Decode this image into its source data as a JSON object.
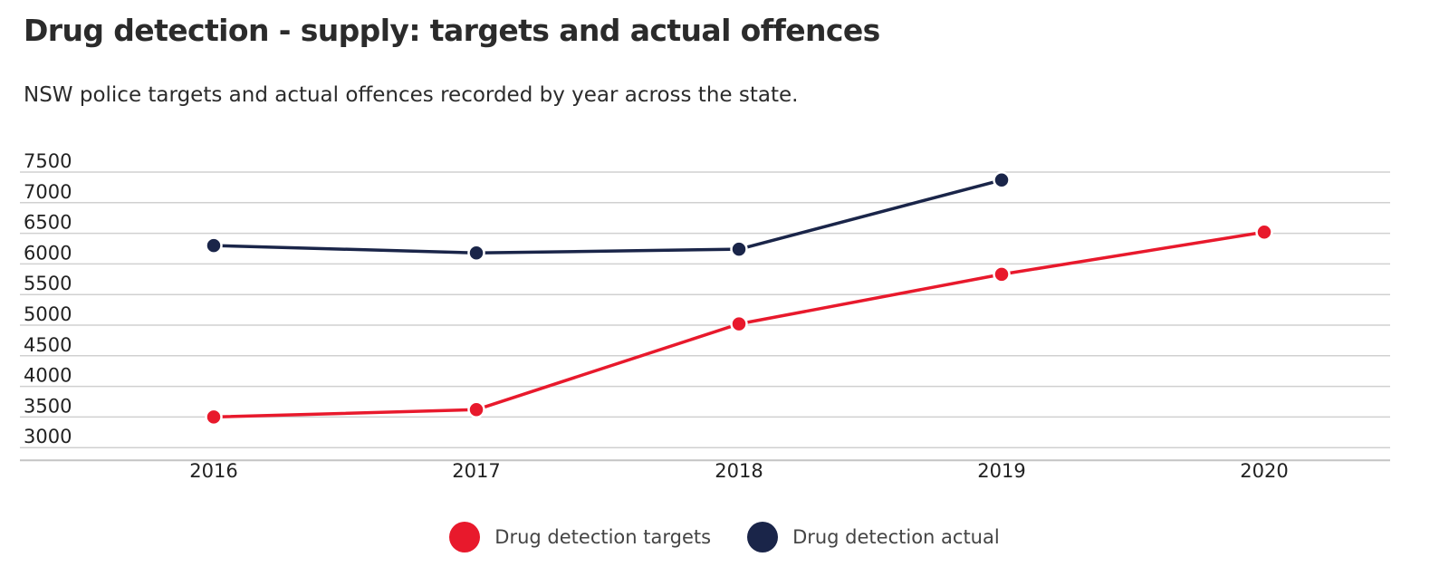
{
  "chart_data": {
    "type": "line",
    "title": "Drug detection - supply: targets and actual offences",
    "subtitle": "NSW police targets and actual offences recorded by year across the state.",
    "xlabel": "",
    "ylabel": "",
    "categories": [
      "2016",
      "2017",
      "2018",
      "2019",
      "2020"
    ],
    "yticks": [
      3000,
      3500,
      4000,
      4500,
      5000,
      5500,
      6000,
      6500,
      7000,
      7500
    ],
    "ylim": [
      2800,
      7500
    ],
    "grid": true,
    "legend_position": "bottom-center",
    "series": [
      {
        "name": "Drug detection targets",
        "color": "#e8192c",
        "values": [
          3500,
          3620,
          5020,
          5830,
          6520
        ]
      },
      {
        "name": "Drug detection actual",
        "color": "#1a2549",
        "values": [
          6300,
          6180,
          6240,
          7370,
          null
        ]
      }
    ]
  }
}
